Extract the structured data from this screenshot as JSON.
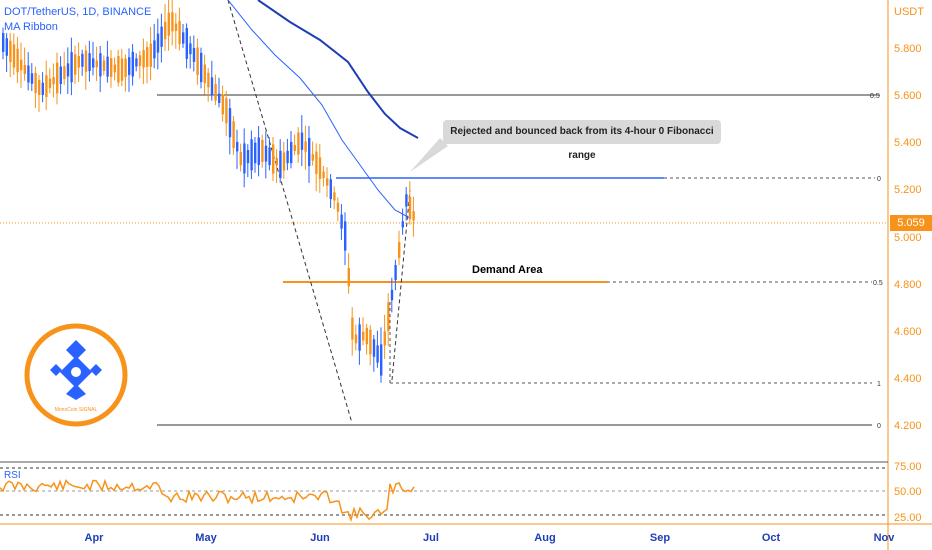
{
  "header": {
    "symbol_line": "DOT/TetherUS, 1D, BINANCE",
    "indicator_line": "MA Ribbon"
  },
  "annotations": {
    "callout": "Rejected and bounced back from its 4-hour 0 Fibonacci range",
    "demand_area": "Demand Area"
  },
  "badge": {
    "text": "MonoCoin SIGNAL"
  },
  "price_axis": {
    "currency": "USDT",
    "ticks": [
      "5.800",
      "5.600",
      "5.400",
      "5.200",
      "5.000",
      "4.800",
      "4.600",
      "4.400",
      "4.200"
    ],
    "current_price": "5.059"
  },
  "time_axis": {
    "labels": [
      "Apr",
      "May",
      "Jun",
      "Jul",
      "Aug",
      "Sep",
      "Oct",
      "Nov"
    ]
  },
  "rsi": {
    "label": "RSI",
    "ticks": [
      "75.00",
      "50.00",
      "25.00"
    ]
  },
  "fib_levels": {
    "top_set": [
      "0.5",
      "0"
    ],
    "bottom_set": [
      "0.5",
      "1",
      "0"
    ]
  },
  "colors": {
    "up": "#2962ff",
    "down": "#f7931a",
    "ma_fast": "#2962ff",
    "ma_slow": "#1e3fb4",
    "rsi_line": "#f7931a",
    "axis_text": "#f7931a"
  },
  "chart_data": {
    "type": "candlestick",
    "symbol": "DOT/TetherUS",
    "interval": "1D",
    "exchange": "BINANCE",
    "y_range": [
      4.15,
      5.95
    ],
    "price_levels": {
      "fib_upper_0_5": 5.6,
      "fib_upper_0": 5.25,
      "current_price": 5.059,
      "demand_area": 4.81,
      "fib_lower_1": 4.38,
      "fib_lower_0": 4.2
    },
    "rsi": {
      "range": [
        0,
        100
      ],
      "levels": [
        75,
        50,
        25
      ]
    }
  }
}
